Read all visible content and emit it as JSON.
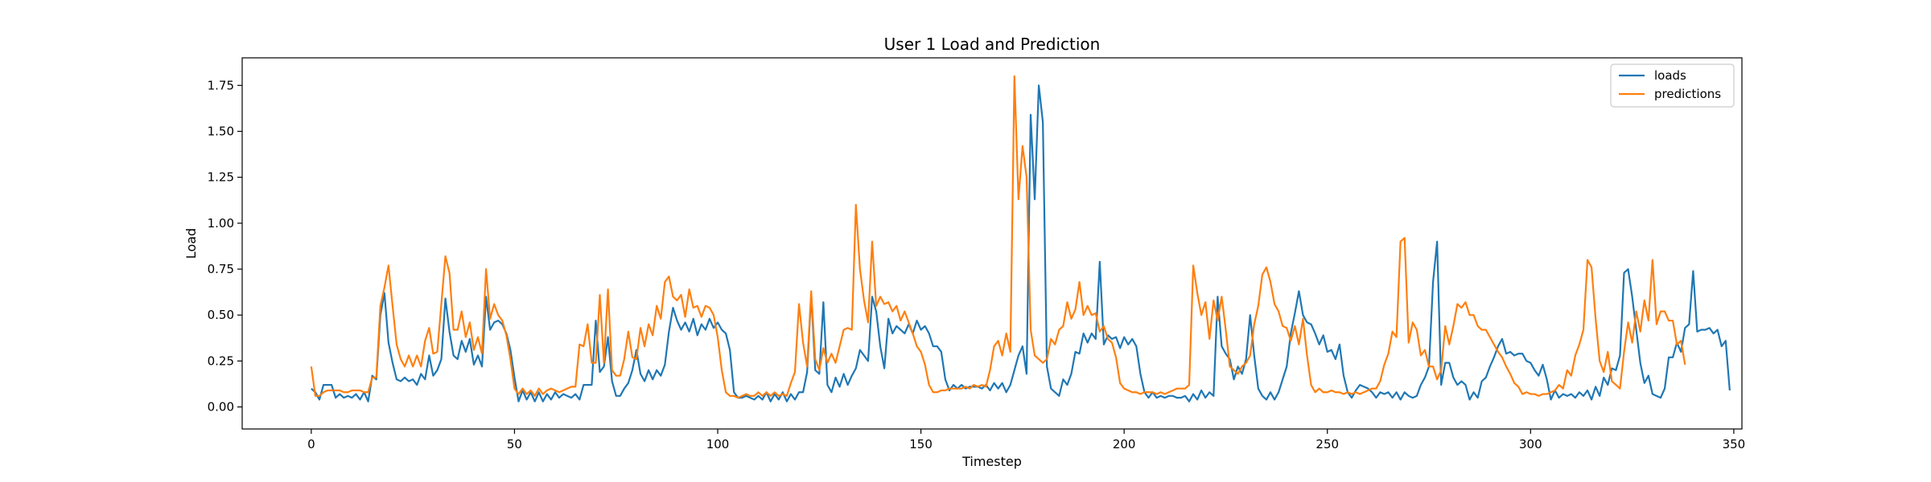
{
  "chart_data": {
    "type": "line",
    "title": "User 1 Load and Prediction",
    "xlabel": "Timestep",
    "ylabel": "Load",
    "xlim": [
      -17,
      352
    ],
    "ylim": [
      -0.12,
      1.9
    ],
    "xticks": [
      0,
      50,
      100,
      150,
      200,
      250,
      300,
      350
    ],
    "yticks": [
      0.0,
      0.25,
      0.5,
      0.75,
      1.0,
      1.25,
      1.5,
      1.75
    ],
    "xtick_labels": [
      "0",
      "50",
      "100",
      "150",
      "200",
      "250",
      "300",
      "350"
    ],
    "ytick_labels": [
      "0.00",
      "0.25",
      "0.50",
      "0.75",
      "1.00",
      "1.25",
      "1.50",
      "1.75"
    ],
    "grid": false,
    "legend_position": "top-right",
    "series": [
      {
        "name": "loads",
        "color": "#1f77b4",
        "x_start": 0,
        "values": [
          0.1,
          0.08,
          0.04,
          0.12,
          0.12,
          0.12,
          0.05,
          0.07,
          0.05,
          0.06,
          0.05,
          0.07,
          0.04,
          0.08,
          0.03,
          0.17,
          0.15,
          0.5,
          0.62,
          0.35,
          0.24,
          0.15,
          0.14,
          0.16,
          0.14,
          0.15,
          0.12,
          0.18,
          0.15,
          0.28,
          0.17,
          0.2,
          0.26,
          0.59,
          0.41,
          0.28,
          0.26,
          0.36,
          0.3,
          0.37,
          0.23,
          0.28,
          0.22,
          0.6,
          0.42,
          0.46,
          0.47,
          0.45,
          0.4,
          0.31,
          0.16,
          0.03,
          0.09,
          0.04,
          0.08,
          0.03,
          0.08,
          0.03,
          0.07,
          0.04,
          0.08,
          0.05,
          0.07,
          0.06,
          0.05,
          0.07,
          0.04,
          0.12,
          0.12,
          0.12,
          0.47,
          0.19,
          0.22,
          0.38,
          0.14,
          0.06,
          0.06,
          0.1,
          0.13,
          0.2,
          0.31,
          0.18,
          0.14,
          0.2,
          0.15,
          0.2,
          0.17,
          0.23,
          0.41,
          0.54,
          0.47,
          0.42,
          0.46,
          0.41,
          0.48,
          0.39,
          0.45,
          0.42,
          0.48,
          0.43,
          0.46,
          0.42,
          0.4,
          0.31,
          0.08,
          0.05,
          0.05,
          0.06,
          0.05,
          0.04,
          0.06,
          0.04,
          0.08,
          0.03,
          0.07,
          0.04,
          0.08,
          0.03,
          0.07,
          0.04,
          0.08,
          0.08,
          0.19,
          0.61,
          0.2,
          0.18,
          0.57,
          0.12,
          0.08,
          0.16,
          0.11,
          0.18,
          0.12,
          0.17,
          0.21,
          0.31,
          0.28,
          0.25,
          0.6,
          0.52,
          0.33,
          0.21,
          0.48,
          0.4,
          0.44,
          0.42,
          0.4,
          0.45,
          0.4,
          0.47,
          0.42,
          0.44,
          0.4,
          0.33,
          0.33,
          0.3,
          0.15,
          0.09,
          0.12,
          0.1,
          0.12,
          0.1,
          0.11,
          0.11,
          0.11,
          0.1,
          0.12,
          0.09,
          0.13,
          0.1,
          0.13,
          0.08,
          0.12,
          0.2,
          0.28,
          0.33,
          0.18,
          1.59,
          1.13,
          1.75,
          1.55,
          0.22,
          0.1,
          0.08,
          0.06,
          0.15,
          0.12,
          0.18,
          0.3,
          0.29,
          0.4,
          0.35,
          0.4,
          0.37,
          0.79,
          0.34,
          0.39,
          0.37,
          0.38,
          0.32,
          0.38,
          0.34,
          0.37,
          0.33,
          0.18,
          0.08,
          0.05,
          0.08,
          0.05,
          0.06,
          0.05,
          0.06,
          0.06,
          0.05,
          0.05,
          0.06,
          0.03,
          0.07,
          0.04,
          0.09,
          0.05,
          0.08,
          0.06,
          0.6,
          0.33,
          0.29,
          0.26,
          0.15,
          0.22,
          0.18,
          0.26,
          0.5,
          0.28,
          0.1,
          0.06,
          0.04,
          0.08,
          0.04,
          0.08,
          0.15,
          0.22,
          0.4,
          0.51,
          0.63,
          0.5,
          0.46,
          0.45,
          0.4,
          0.34,
          0.39,
          0.3,
          0.31,
          0.26,
          0.34,
          0.17,
          0.08,
          0.05,
          0.09,
          0.12,
          0.11,
          0.1,
          0.08,
          0.05,
          0.08,
          0.07,
          0.08,
          0.05,
          0.08,
          0.04,
          0.08,
          0.06,
          0.05,
          0.06,
          0.12,
          0.16,
          0.22,
          0.68,
          0.9,
          0.12,
          0.24,
          0.24,
          0.16,
          0.12,
          0.14,
          0.12,
          0.04,
          0.08,
          0.05,
          0.14,
          0.16,
          0.22,
          0.27,
          0.33,
          0.37,
          0.29,
          0.3,
          0.28,
          0.29,
          0.29,
          0.25,
          0.24,
          0.2,
          0.17,
          0.23,
          0.15,
          0.04,
          0.09,
          0.05,
          0.07,
          0.06,
          0.07,
          0.05,
          0.08,
          0.06,
          0.09,
          0.04,
          0.11,
          0.06,
          0.16,
          0.12,
          0.21,
          0.2,
          0.28,
          0.73,
          0.75,
          0.6,
          0.42,
          0.24,
          0.13,
          0.17,
          0.07,
          0.06,
          0.05,
          0.1,
          0.27,
          0.27,
          0.35,
          0.3,
          0.43,
          0.45,
          0.74,
          0.41,
          0.42,
          0.42,
          0.43,
          0.4,
          0.42,
          0.33,
          0.36,
          0.09
        ]
      },
      {
        "name": "predictions",
        "color": "#ff7f0e",
        "x_start": 0,
        "values": [
          0.22,
          0.06,
          0.06,
          0.08,
          0.09,
          0.09,
          0.09,
          0.09,
          0.08,
          0.08,
          0.09,
          0.09,
          0.09,
          0.08,
          0.08,
          0.16,
          0.16,
          0.55,
          0.65,
          0.77,
          0.55,
          0.34,
          0.26,
          0.22,
          0.28,
          0.22,
          0.28,
          0.22,
          0.36,
          0.43,
          0.29,
          0.3,
          0.56,
          0.82,
          0.73,
          0.42,
          0.42,
          0.52,
          0.38,
          0.46,
          0.31,
          0.38,
          0.29,
          0.75,
          0.48,
          0.56,
          0.5,
          0.47,
          0.39,
          0.26,
          0.1,
          0.07,
          0.1,
          0.07,
          0.09,
          0.06,
          0.1,
          0.07,
          0.09,
          0.1,
          0.09,
          0.08,
          0.09,
          0.1,
          0.11,
          0.11,
          0.34,
          0.33,
          0.45,
          0.24,
          0.24,
          0.61,
          0.24,
          0.64,
          0.2,
          0.17,
          0.17,
          0.26,
          0.41,
          0.27,
          0.26,
          0.43,
          0.33,
          0.45,
          0.39,
          0.55,
          0.48,
          0.68,
          0.71,
          0.6,
          0.58,
          0.61,
          0.49,
          0.64,
          0.54,
          0.55,
          0.49,
          0.55,
          0.54,
          0.5,
          0.38,
          0.2,
          0.08,
          0.06,
          0.06,
          0.05,
          0.06,
          0.07,
          0.06,
          0.06,
          0.08,
          0.06,
          0.08,
          0.06,
          0.08,
          0.06,
          0.07,
          0.06,
          0.13,
          0.19,
          0.56,
          0.35,
          0.22,
          0.63,
          0.26,
          0.2,
          0.32,
          0.24,
          0.29,
          0.24,
          0.33,
          0.42,
          0.43,
          0.42,
          1.1,
          0.75,
          0.58,
          0.46,
          0.9,
          0.55,
          0.6,
          0.56,
          0.57,
          0.52,
          0.55,
          0.47,
          0.52,
          0.46,
          0.4,
          0.33,
          0.3,
          0.23,
          0.12,
          0.08,
          0.08,
          0.09,
          0.09,
          0.1,
          0.1,
          0.1,
          0.1,
          0.11,
          0.1,
          0.12,
          0.11,
          0.12,
          0.11,
          0.2,
          0.33,
          0.36,
          0.28,
          0.4,
          0.3,
          1.8,
          1.13,
          1.42,
          1.25,
          0.42,
          0.28,
          0.26,
          0.24,
          0.26,
          0.37,
          0.34,
          0.42,
          0.44,
          0.57,
          0.48,
          0.53,
          0.68,
          0.5,
          0.55,
          0.5,
          0.51,
          0.41,
          0.44,
          0.37,
          0.35,
          0.27,
          0.13,
          0.1,
          0.09,
          0.08,
          0.08,
          0.07,
          0.08,
          0.08,
          0.08,
          0.07,
          0.08,
          0.07,
          0.08,
          0.09,
          0.1,
          0.1,
          0.1,
          0.12,
          0.77,
          0.62,
          0.5,
          0.57,
          0.37,
          0.58,
          0.47,
          0.6,
          0.42,
          0.22,
          0.2,
          0.18,
          0.22,
          0.24,
          0.28,
          0.45,
          0.55,
          0.72,
          0.76,
          0.68,
          0.56,
          0.52,
          0.44,
          0.43,
          0.36,
          0.44,
          0.34,
          0.48,
          0.28,
          0.12,
          0.08,
          0.1,
          0.08,
          0.08,
          0.09,
          0.08,
          0.08,
          0.07,
          0.08,
          0.07,
          0.08,
          0.07,
          0.08,
          0.09,
          0.1,
          0.1,
          0.14,
          0.23,
          0.29,
          0.41,
          0.38,
          0.9,
          0.92,
          0.35,
          0.46,
          0.42,
          0.28,
          0.31,
          0.22,
          0.22,
          0.15,
          0.2,
          0.44,
          0.34,
          0.44,
          0.56,
          0.54,
          0.57,
          0.5,
          0.5,
          0.44,
          0.42,
          0.42,
          0.38,
          0.34,
          0.3,
          0.27,
          0.22,
          0.18,
          0.13,
          0.11,
          0.07,
          0.08,
          0.07,
          0.07,
          0.06,
          0.07,
          0.07,
          0.08,
          0.09,
          0.12,
          0.1,
          0.2,
          0.17,
          0.28,
          0.34,
          0.42,
          0.8,
          0.76,
          0.48,
          0.25,
          0.19,
          0.3,
          0.14,
          0.12,
          0.1,
          0.3,
          0.46,
          0.35,
          0.52,
          0.41,
          0.58,
          0.47,
          0.8,
          0.45,
          0.52,
          0.52,
          0.47,
          0.47,
          0.34,
          0.36,
          0.23
        ]
      }
    ]
  }
}
